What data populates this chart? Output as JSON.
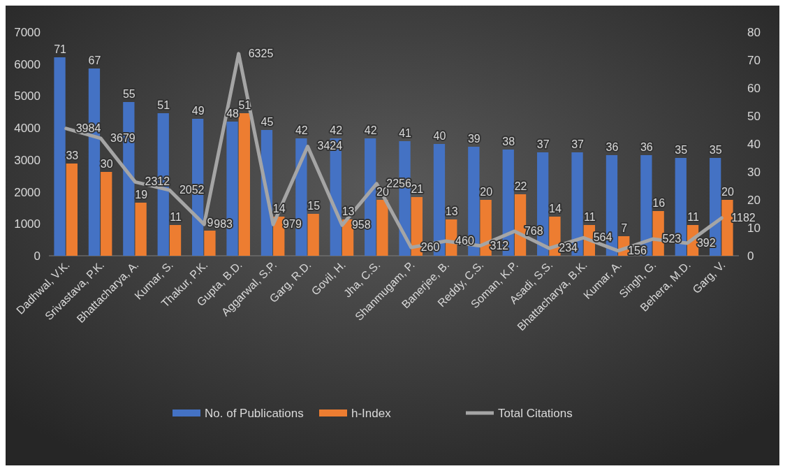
{
  "chart_data": {
    "type": "bar",
    "categories": [
      "Dadhwal, V.K.",
      "Srivastava, P.K.",
      "Bhattacharya, A.",
      "Kumar, S.",
      "Thakur, P.K.",
      "Gupta, B.D.",
      "Aggarwal, S.P.",
      "Garg, R.D.",
      "Govil, H.",
      "Jha, C.S.",
      "Shanmugam, P.",
      "Banerjee, B.",
      "Reddy, C.S.",
      "Soman, K.P.",
      "Asadi, S.S.",
      "Bhattacharya, B.K.",
      "Kumar, A.",
      "Singh, G.",
      "Behera, M.D.",
      "Garg, V."
    ],
    "series": [
      {
        "name": "No. of Publications",
        "color": "#4472c4",
        "axis": "y2",
        "values": [
          71,
          67,
          55,
          51,
          49,
          48,
          45,
          42,
          42,
          42,
          41,
          40,
          39,
          38,
          37,
          37,
          36,
          36,
          35,
          35
        ]
      },
      {
        "name": "h-Index",
        "color": "#ed7d31",
        "axis": "y2",
        "values": [
          33,
          30,
          19,
          11,
          9,
          51,
          14,
          15,
          13,
          20,
          21,
          13,
          20,
          22,
          14,
          11,
          7,
          16,
          11,
          20
        ]
      },
      {
        "name": "Total Citations",
        "type": "line",
        "color": "#a5a5a5",
        "values": [
          3984,
          3679,
          2312,
          2052,
          983,
          6325,
          979,
          3424,
          958,
          2256,
          260,
          460,
          312,
          768,
          234,
          564,
          156,
          523,
          392,
          1182
        ]
      }
    ],
    "ylim": [
      0,
      7000
    ],
    "yticks": [
      0,
      1000,
      2000,
      3000,
      4000,
      5000,
      6000,
      7000
    ],
    "y2lim": [
      0,
      80
    ],
    "y2ticks": [
      0,
      10,
      20,
      30,
      40,
      50,
      60,
      70,
      80
    ],
    "data_labels": true,
    "legend": "bottom",
    "grid": false,
    "marker": "none"
  }
}
